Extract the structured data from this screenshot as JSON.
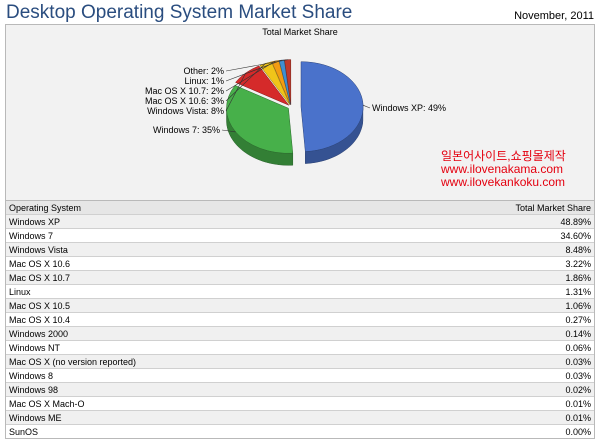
{
  "page": {
    "title": "Desktop Operating System Market Share",
    "date": "November, 2011"
  },
  "chart_data": {
    "type": "pie",
    "title": "Total Market Share",
    "slices": [
      {
        "label": "Windows XP: 49%",
        "value": 48.89,
        "color": "#4a72cb"
      },
      {
        "label": "Windows 7: 35%",
        "value": 34.6,
        "color": "#47b04a"
      },
      {
        "label": "Windows Vista: 8%",
        "value": 8.48,
        "color": "#d52a2a"
      },
      {
        "label": "Mac OS X 10.6: 3%",
        "value": 3.22,
        "color": "#f0c419"
      },
      {
        "label": "Mac OS X 10.7: 2%",
        "value": 1.86,
        "color": "#f39c12"
      },
      {
        "label": "Linux: 1%",
        "value": 1.31,
        "color": "#3f8fd2"
      },
      {
        "label": "Other: 2%",
        "value": 1.64,
        "color": "#c0392b"
      }
    ]
  },
  "watermark": {
    "line1": "일본어사이트,쇼핑몰제작",
    "line2": "www.ilovenakama.com",
    "line3": "www.ilovekankoku.com"
  },
  "table": {
    "headers": {
      "os": "Operating System",
      "share": "Total Market Share"
    },
    "rows": [
      {
        "os": "Windows XP",
        "share": "48.89%"
      },
      {
        "os": "Windows 7",
        "share": "34.60%"
      },
      {
        "os": "Windows Vista",
        "share": "8.48%"
      },
      {
        "os": "Mac OS X 10.6",
        "share": "3.22%"
      },
      {
        "os": "Mac OS X 10.7",
        "share": "1.86%"
      },
      {
        "os": "Linux",
        "share": "1.31%"
      },
      {
        "os": "Mac OS X 10.5",
        "share": "1.06%"
      },
      {
        "os": "Mac OS X 10.4",
        "share": "0.27%"
      },
      {
        "os": "Windows 2000",
        "share": "0.14%"
      },
      {
        "os": "Windows NT",
        "share": "0.06%"
      },
      {
        "os": "Mac OS X (no version reported)",
        "share": "0.03%"
      },
      {
        "os": "Windows 8",
        "share": "0.03%"
      },
      {
        "os": "Windows 98",
        "share": "0.02%"
      },
      {
        "os": "Mac OS X Mach-O",
        "share": "0.01%"
      },
      {
        "os": "Windows ME",
        "share": "0.01%"
      },
      {
        "os": "SunOS",
        "share": "0.00%"
      }
    ]
  }
}
